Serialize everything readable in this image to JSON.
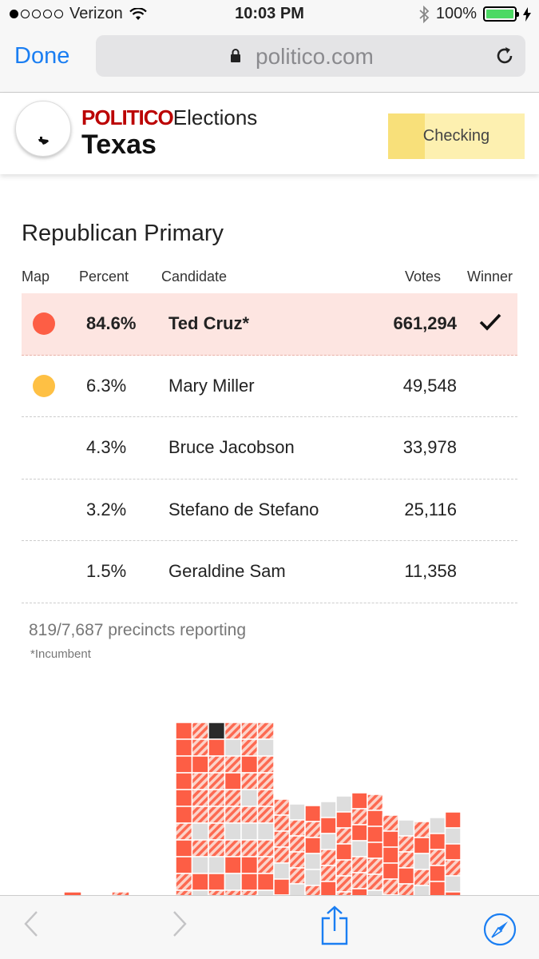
{
  "status_bar": {
    "carrier": "Verizon",
    "time": "10:03 PM",
    "battery": "100%"
  },
  "browser": {
    "done_label": "Done",
    "url": "politico.com"
  },
  "header": {
    "brand_politico": "POLITICO",
    "brand_elections": "Elections",
    "state": "Texas",
    "status_button": "Checking"
  },
  "race": {
    "title": "Republican Primary",
    "columns": {
      "map": "Map",
      "percent": "Percent",
      "candidate": "Candidate",
      "votes": "Votes",
      "winner": "Winner"
    },
    "rows": [
      {
        "percent": "84.6%",
        "candidate": "Ted Cruz*",
        "votes": "661,294",
        "winner": true,
        "color": "#fd5e45"
      },
      {
        "percent": "6.3%",
        "candidate": "Mary Miller",
        "votes": "49,548",
        "winner": false,
        "color": "#fec044"
      },
      {
        "percent": "4.3%",
        "candidate": "Bruce Jacobson",
        "votes": "33,978",
        "winner": false,
        "color": ""
      },
      {
        "percent": "3.2%",
        "candidate": "Stefano de Stefano",
        "votes": "25,116",
        "winner": false,
        "color": ""
      },
      {
        "percent": "1.5%",
        "candidate": "Geraldine Sam",
        "votes": "11,358",
        "winner": false,
        "color": ""
      }
    ],
    "precincts_reporting": "819/7,687 precincts reporting",
    "footnote": "*Incumbent"
  },
  "colors": {
    "accent": "#1a7ef2",
    "winner_bg": "#fde5e1",
    "cruz": "#fd5e45",
    "miller": "#fec044",
    "no_data": "#dddddd",
    "other": "#2a2a2a"
  }
}
